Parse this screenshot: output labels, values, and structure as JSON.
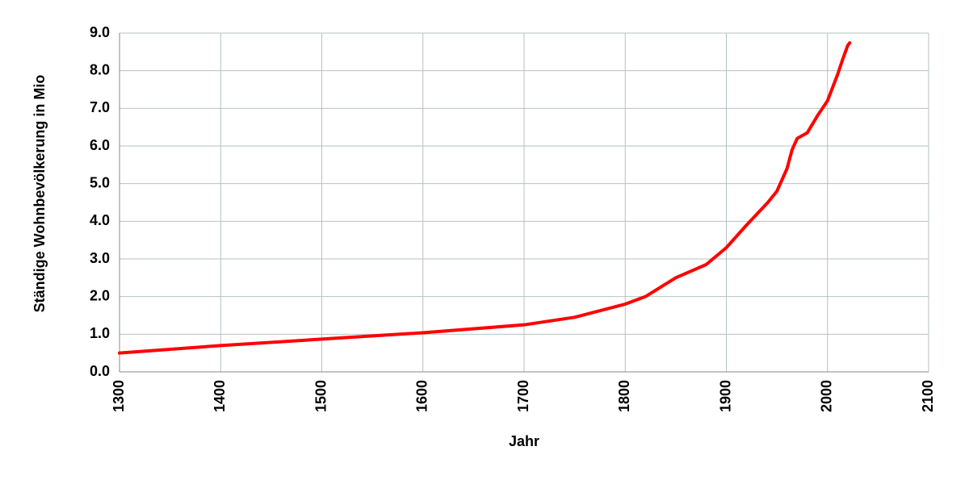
{
  "chart_data": {
    "type": "line",
    "x_label": "Jahr",
    "y_label": "Ständige Wohnbevölkerung in Mio",
    "x": [
      1300,
      1400,
      1500,
      1600,
      1700,
      1750,
      1800,
      1820,
      1850,
      1880,
      1900,
      1920,
      1941,
      1950,
      1955,
      1960,
      1965,
      1970,
      1980,
      1990,
      2000,
      2010,
      2015,
      2020,
      2022
    ],
    "series": [
      {
        "color": "#ff0000",
        "values": [
          0.5,
          0.7,
          0.87,
          1.04,
          1.25,
          1.45,
          1.8,
          2.0,
          2.5,
          2.85,
          3.3,
          3.9,
          4.5,
          4.8,
          5.1,
          5.4,
          5.9,
          6.2,
          6.35,
          6.8,
          7.2,
          7.9,
          8.3,
          8.67,
          8.74
        ]
      }
    ],
    "xlim": [
      1300,
      2100
    ],
    "xticks": [
      1300,
      1400,
      1500,
      1600,
      1700,
      1800,
      1900,
      2000,
      2100
    ],
    "ylim": [
      0,
      9
    ],
    "yticks": [
      {
        "value": 0,
        "label": "0.0"
      },
      {
        "value": 1,
        "label": "1.0"
      },
      {
        "value": 2,
        "label": "2.0"
      },
      {
        "value": 3,
        "label": "3.0"
      },
      {
        "value": 4,
        "label": "4.0"
      },
      {
        "value": 5,
        "label": "5.0"
      },
      {
        "value": 6,
        "label": "6.0"
      },
      {
        "value": 7,
        "label": "7.0"
      },
      {
        "value": 8,
        "label": "8.0"
      },
      {
        "value": 9,
        "label": "9.0"
      }
    ],
    "grid": true
  }
}
